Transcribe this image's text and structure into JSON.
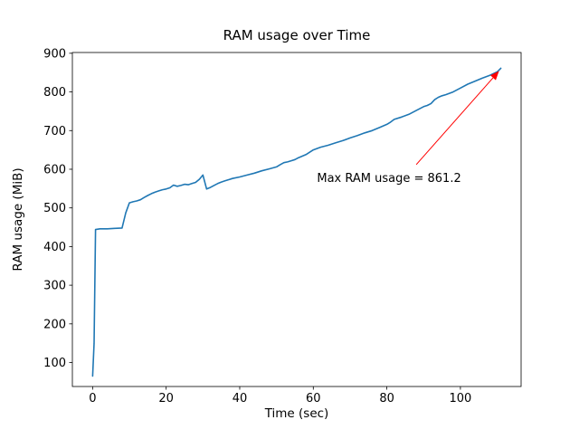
{
  "chart_data": {
    "type": "line",
    "title": "RAM usage over Time",
    "xlabel": "Time (sec)",
    "ylabel": "RAM usage (MiB)",
    "xlim": [
      -5.5,
      116.5
    ],
    "ylim": [
      38,
      902
    ],
    "xticks": [
      0,
      20,
      40,
      60,
      80,
      100
    ],
    "yticks": [
      100,
      200,
      300,
      400,
      500,
      600,
      700,
      800,
      900
    ],
    "grid": false,
    "legend": "none",
    "line_color": "#1f77b4",
    "series": [
      {
        "name": "RAM usage",
        "points": [
          [
            0,
            65
          ],
          [
            0.4,
            150
          ],
          [
            0.8,
            444
          ],
          [
            2,
            446
          ],
          [
            4,
            446
          ],
          [
            6,
            447
          ],
          [
            8,
            448
          ],
          [
            9,
            487
          ],
          [
            10,
            513
          ],
          [
            11,
            516
          ],
          [
            12,
            518
          ],
          [
            13,
            521
          ],
          [
            14,
            527
          ],
          [
            15,
            532
          ],
          [
            16,
            537
          ],
          [
            17,
            541
          ],
          [
            18,
            544
          ],
          [
            19,
            547
          ],
          [
            20,
            549
          ],
          [
            21,
            552
          ],
          [
            22,
            559
          ],
          [
            23,
            556
          ],
          [
            24,
            558
          ],
          [
            25,
            561
          ],
          [
            26,
            560
          ],
          [
            27,
            563
          ],
          [
            28,
            566
          ],
          [
            29,
            574
          ],
          [
            30,
            585
          ],
          [
            31,
            549
          ],
          [
            32,
            553
          ],
          [
            33,
            558
          ],
          [
            34,
            563
          ],
          [
            35,
            567
          ],
          [
            36,
            570
          ],
          [
            37,
            573
          ],
          [
            38,
            576
          ],
          [
            40,
            580
          ],
          [
            42,
            585
          ],
          [
            44,
            590
          ],
          [
            46,
            596
          ],
          [
            48,
            601
          ],
          [
            50,
            606
          ],
          [
            51,
            612
          ],
          [
            52,
            617
          ],
          [
            53,
            619
          ],
          [
            54,
            622
          ],
          [
            55,
            625
          ],
          [
            56,
            630
          ],
          [
            57,
            634
          ],
          [
            58,
            638
          ],
          [
            60,
            650
          ],
          [
            62,
            657
          ],
          [
            64,
            662
          ],
          [
            66,
            668
          ],
          [
            68,
            674
          ],
          [
            70,
            681
          ],
          [
            72,
            687
          ],
          [
            74,
            694
          ],
          [
            76,
            700
          ],
          [
            78,
            708
          ],
          [
            80,
            716
          ],
          [
            81,
            722
          ],
          [
            82,
            729
          ],
          [
            84,
            735
          ],
          [
            86,
            742
          ],
          [
            88,
            752
          ],
          [
            90,
            762
          ],
          [
            91,
            765
          ],
          [
            92,
            770
          ],
          [
            93,
            780
          ],
          [
            94,
            786
          ],
          [
            95,
            790
          ],
          [
            96,
            793
          ],
          [
            98,
            800
          ],
          [
            100,
            810
          ],
          [
            102,
            820
          ],
          [
            104,
            828
          ],
          [
            106,
            836
          ],
          [
            108,
            843
          ],
          [
            110,
            852
          ],
          [
            111,
            861.2
          ]
        ]
      }
    ],
    "annotation": {
      "text": "Max RAM usage = 861.2",
      "color": "#ff0000",
      "xy": [
        111,
        861.2
      ],
      "text_pos": [
        61,
        577
      ],
      "arrow_start": [
        88,
        612
      ]
    }
  }
}
